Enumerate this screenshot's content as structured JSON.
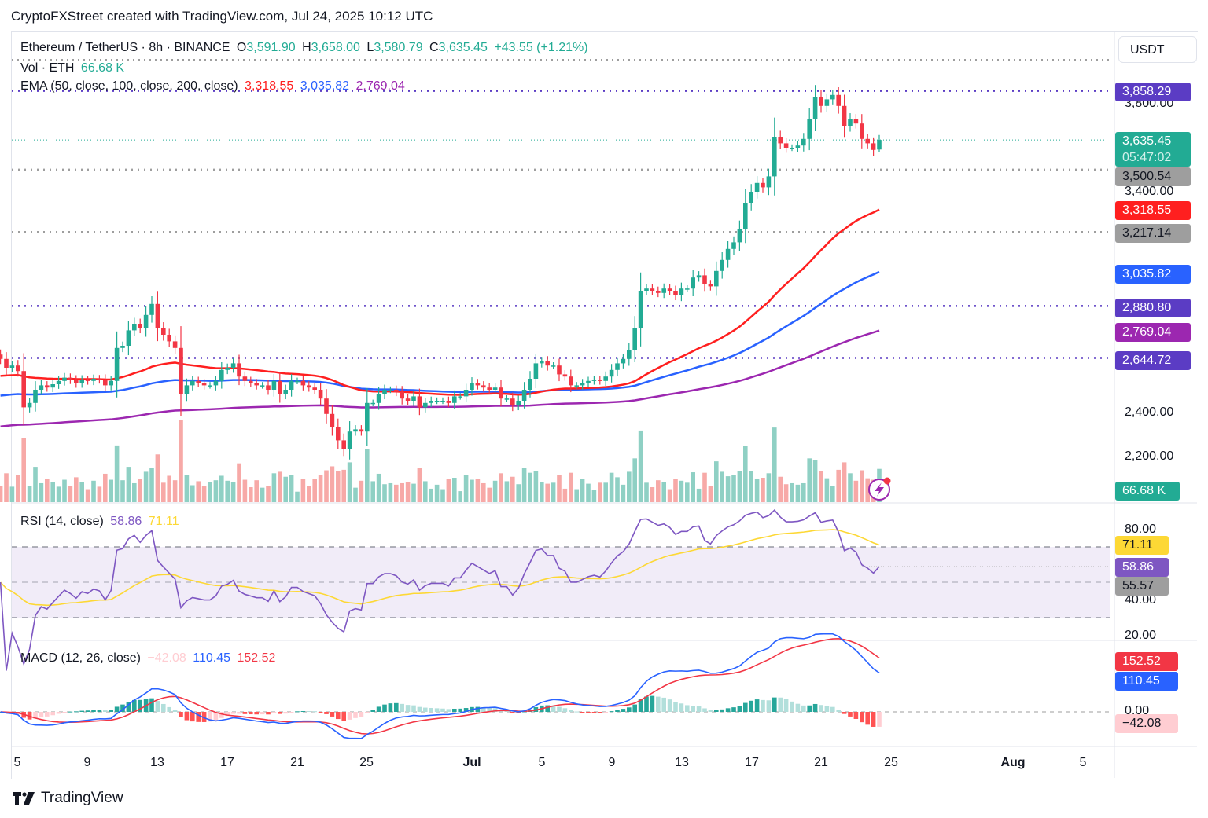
{
  "header": {
    "caption": "CryptoFXStreet created with TradingView.com, Jul 24, 2025 10:12 UTC"
  },
  "legend": {
    "symbol": "Ethereum / TetherUS · 8h · BINANCE",
    "o_label": "O",
    "o": "3,591.90",
    "h_label": "H",
    "h": "3,658.00",
    "l_label": "L",
    "l": "3,580.79",
    "c_label": "C",
    "c": "3,635.45",
    "change": "+43.55 (+1.21%)",
    "vol_label": "Vol · ETH",
    "vol": "66.68 K",
    "ema_label": "EMA (50, close, 100, close, 200, close)",
    "ema50": "3,318.55",
    "ema100": "3,035.82",
    "ema200": "2,769.04",
    "rsi_label": "RSI (14, close)",
    "rsi": "58.86",
    "rsi_ma": "71.11",
    "macd_label": "MACD (12, 26, close)",
    "macd_hist": "−42.08",
    "macd": "110.45",
    "macd_signal": "152.52"
  },
  "currency_button": "USDT",
  "colors": {
    "up": "#22ab94",
    "down": "#f23645",
    "vol_up": "#8fd0c4",
    "vol_down": "#f7a9a7",
    "ema50": "#ff1f1f",
    "ema100": "#2962ff",
    "ema200": "#9c27b0",
    "level_purple": "#5b3cc4",
    "level_gray": "#9e9e9e",
    "rsi": "#7e57c2",
    "rsi_ma": "#fdd835",
    "macd": "#2962ff",
    "signal": "#f23645"
  },
  "price_axis": {
    "labels": [
      "3,800.00",
      "3,400.00",
      "2,400.00",
      "2,200.00"
    ],
    "badges": [
      {
        "text": "3,858.29",
        "bg": "#5b3cc4",
        "fg": "#ffffff",
        "value": 3858.29
      },
      {
        "text": "3,635.45",
        "sub": "05:47:02",
        "bg": "#22ab94",
        "fg": "#ffffff",
        "value": 3635.45
      },
      {
        "text": "3,500.54",
        "bg": "#9e9e9e",
        "fg": "#131722",
        "value": 3500.54
      },
      {
        "text": "3,318.55",
        "bg": "#ff1f1f",
        "fg": "#ffffff",
        "value": 3318.55
      },
      {
        "text": "3,217.14",
        "bg": "#9e9e9e",
        "fg": "#131722",
        "value": 3217.14
      },
      {
        "text": "3,035.82",
        "bg": "#2962ff",
        "fg": "#ffffff",
        "value": 3035.82
      },
      {
        "text": "2,880.80",
        "bg": "#5b3cc4",
        "fg": "#ffffff",
        "value": 2880.8
      },
      {
        "text": "2,769.04",
        "bg": "#9c27b0",
        "fg": "#ffffff",
        "value": 2769.04
      },
      {
        "text": "2,644.72",
        "bg": "#5b3cc4",
        "fg": "#ffffff",
        "value": 2644.72
      }
    ],
    "volume_badge": "66.68 K"
  },
  "rsi_axis": {
    "labels": [
      "80.00",
      "40.00",
      "20.00"
    ],
    "badges": [
      {
        "text": "71.11",
        "bg": "#fdd835",
        "fg": "#131722"
      },
      {
        "text": "58.86",
        "bg": "#7e57c2",
        "fg": "#ffffff"
      },
      {
        "text": "55.57",
        "bg": "#9e9e9e",
        "fg": "#131722"
      }
    ]
  },
  "macd_axis": {
    "labels": [
      "0.00"
    ],
    "badges": [
      {
        "text": "152.52",
        "bg": "#f23645",
        "fg": "#ffffff"
      },
      {
        "text": "110.45",
        "bg": "#2962ff",
        "fg": "#ffffff"
      },
      {
        "text": "−42.08",
        "bg": "#ffcdd2",
        "fg": "#131722"
      }
    ]
  },
  "time_axis": [
    {
      "label": "5",
      "bold": false
    },
    {
      "label": "9",
      "bold": false
    },
    {
      "label": "13",
      "bold": false
    },
    {
      "label": "17",
      "bold": false
    },
    {
      "label": "21",
      "bold": false
    },
    {
      "label": "25",
      "bold": false
    },
    {
      "label": "Jul",
      "bold": true
    },
    {
      "label": "5",
      "bold": false
    },
    {
      "label": "9",
      "bold": false
    },
    {
      "label": "13",
      "bold": false
    },
    {
      "label": "17",
      "bold": false
    },
    {
      "label": "21",
      "bold": false
    },
    {
      "label": "25",
      "bold": false
    },
    {
      "label": "Aug",
      "bold": true
    },
    {
      "label": "5",
      "bold": false
    }
  ],
  "footer": {
    "brand": "TradingView"
  },
  "chart_data": {
    "type": "candlestick",
    "title": "Ethereum / TetherUS · 8h · BINANCE",
    "ylabel": "USDT",
    "ylim": [
      2040,
      3920
    ],
    "horizontal_levels": [
      {
        "value": 3858.29,
        "style": "dotted",
        "color": "purple"
      },
      {
        "value": 3500.54,
        "style": "dotted",
        "color": "gray"
      },
      {
        "value": 3217.14,
        "style": "dotted",
        "color": "gray"
      },
      {
        "value": 2880.8,
        "style": "dotted",
        "color": "purple"
      },
      {
        "value": 2644.72,
        "style": "dotted",
        "color": "purple"
      },
      {
        "value": 3635.45,
        "style": "dotted",
        "color": "teal",
        "label": "last price"
      }
    ],
    "closes": [
      2640,
      2600,
      2610,
      2585,
      2420,
      2440,
      2500,
      2520,
      2510,
      2525,
      2540,
      2555,
      2545,
      2530,
      2545,
      2540,
      2550,
      2545,
      2520,
      2540,
      2690,
      2700,
      2770,
      2800,
      2780,
      2840,
      2890,
      2780,
      2750,
      2720,
      2690,
      2480,
      2520,
      2540,
      2530,
      2520,
      2520,
      2540,
      2590,
      2600,
      2620,
      2560,
      2540,
      2530,
      2520,
      2520,
      2500,
      2540,
      2480,
      2500,
      2540,
      2540,
      2520,
      2510,
      2500,
      2460,
      2390,
      2330,
      2270,
      2230,
      2310,
      2320,
      2310,
      2440,
      2440,
      2480,
      2500,
      2500,
      2490,
      2460,
      2450,
      2470,
      2420,
      2440,
      2450,
      2450,
      2450,
      2440,
      2470,
      2470,
      2500,
      2530,
      2520,
      2510,
      2500,
      2510,
      2460,
      2460,
      2430,
      2450,
      2500,
      2550,
      2620,
      2630,
      2610,
      2610,
      2570,
      2560,
      2520,
      2520,
      2530,
      2540,
      2545,
      2540,
      2560,
      2590,
      2620,
      2640,
      2680,
      2780,
      2950,
      2960,
      2950,
      2940,
      2960,
      2950,
      2930,
      2960,
      2960,
      3010,
      3020,
      2980,
      2970,
      3040,
      3090,
      3140,
      3170,
      3230,
      3350,
      3400,
      3440,
      3420,
      3470,
      3650,
      3620,
      3600,
      3600,
      3610,
      3640,
      3730,
      3830,
      3790,
      3820,
      3840,
      3790,
      3700,
      3730,
      3710,
      3640,
      3620,
      3590,
      3635
    ],
    "ema50_last": 3318.55,
    "ema100_last": 3035.82,
    "ema200_last": 2769.04,
    "volume_last": "66.68K",
    "rsi": {
      "last": 58.86,
      "ma_last": 71.11,
      "bands": [
        70,
        50,
        30
      ],
      "range": [
        10,
        90
      ]
    },
    "macd": {
      "hist_last": -42.08,
      "macd_last": 110.45,
      "signal_last": 152.52
    }
  }
}
